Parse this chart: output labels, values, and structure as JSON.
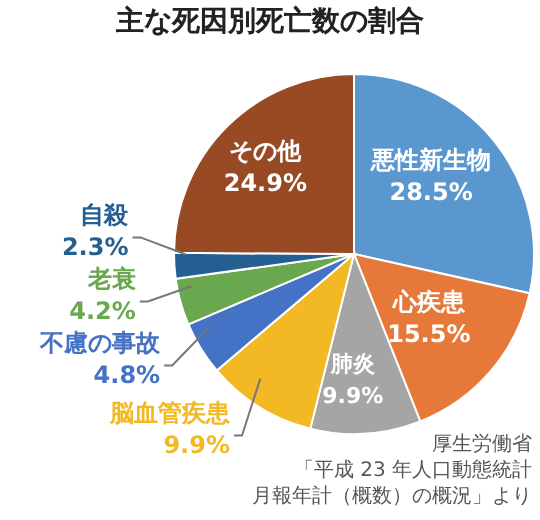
{
  "chart_data": {
    "type": "pie",
    "title": "主な死因別死亡数の割合",
    "categories": [
      "悪性新生物",
      "心疾患",
      "肺炎",
      "脳血管疾患",
      "不慮の事故",
      "老衰",
      "自殺",
      "その他"
    ],
    "values": [
      28.5,
      15.5,
      9.9,
      9.9,
      4.8,
      4.2,
      2.3,
      24.9
    ],
    "colors": [
      "#5b97cf",
      "#e6793a",
      "#a5a5a5",
      "#f2b925",
      "#4472c4",
      "#6aa84f",
      "#255e91",
      "#984a25"
    ],
    "value_labels": [
      "28.5%",
      "15.5%",
      "9.9%",
      "9.9%",
      "4.8%",
      "4.2%",
      "2.3%",
      "24.9%"
    ],
    "annotations": [
      "厚生労働省",
      "「平成 23 年人口動態統計",
      "月報年計（概数）の概況」より"
    ]
  }
}
